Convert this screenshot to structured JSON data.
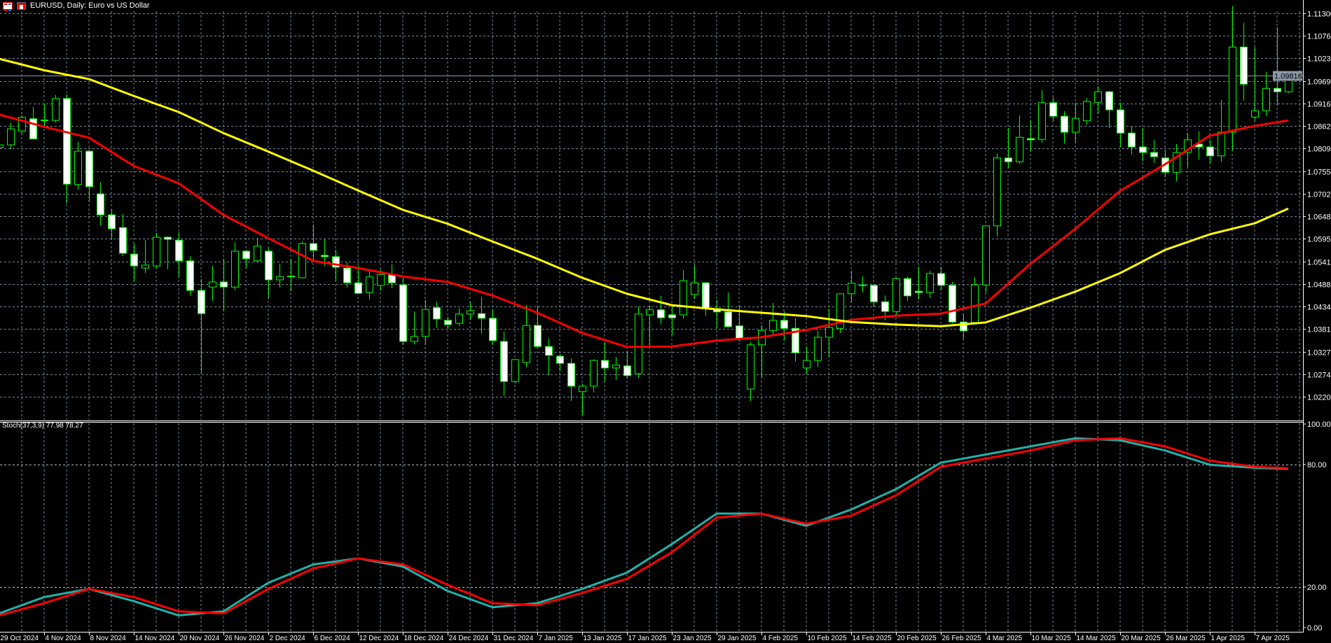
{
  "header": {
    "title": "EURUSD, Daily:  Euro vs US Dollar",
    "icons": [
      "symbol-list-icon",
      "chart-window-icon"
    ]
  },
  "indicator_panel": {
    "label": "Stoch(37,3,9) 77.98 78.27"
  },
  "current_price": "1.09816",
  "colors": {
    "background": "#000000",
    "grid": "#778899",
    "candle_outline": "#00ff00",
    "bear_body": "#ffffff",
    "bull_body": "#000000",
    "ma_fast": "#ff0000",
    "ma_slow": "#ffff00",
    "stoch_main": "#20b2aa",
    "stoch_signal": "#ff0000",
    "axis_text": "#ffffff",
    "price_tag": "#8a99a6"
  },
  "chart_data": [
    {
      "type": "candlestick",
      "symbol": "EURUSD",
      "timeframe": "Daily",
      "x_tick_labels": [
        "29 Oct 2024",
        "4 Nov 2024",
        "8 Nov 2024",
        "14 Nov 2024",
        "20 Nov 2024",
        "26 Nov 2024",
        "2 Dec 2024",
        "6 Dec 2024",
        "12 Dec 2024",
        "18 Dec 2024",
        "24 Dec 2024",
        "31 Dec 2024",
        "7 Jan 2025",
        "13 Jan 2025",
        "17 Jan 2025",
        "23 Jan 2025",
        "29 Jan 2025",
        "4 Feb 2025",
        "10 Feb 2025",
        "14 Feb 2025",
        "20 Feb 2025",
        "26 Feb 2025",
        "4 Mar 2025",
        "10 Mar 2025",
        "14 Mar 2025",
        "20 Mar 2025",
        "26 Mar 2025",
        "1 Apr 2025",
        "7 Apr 2025"
      ],
      "y_tick_labels": [
        "1.11300",
        "1.10765",
        "1.10230",
        "1.09695",
        "1.09160",
        "1.08625",
        "1.08090",
        "1.07555",
        "1.07020",
        "1.06485",
        "1.05950",
        "1.05415",
        "1.04880",
        "1.04345",
        "1.03810",
        "1.03275",
        "1.02740",
        "1.02205"
      ],
      "ylim": [
        1.0185,
        1.116
      ],
      "grid": true,
      "ohlc_fields": [
        "open",
        "high",
        "low",
        "close"
      ],
      "candles": [
        [
          1.0812,
          1.0821,
          1.0808,
          1.0818
        ],
        [
          1.0818,
          1.0871,
          1.0808,
          1.0856
        ],
        [
          1.0851,
          1.0888,
          1.0843,
          1.0883
        ],
        [
          1.088,
          1.0908,
          1.0831,
          1.0832
        ],
        [
          1.0876,
          1.0916,
          1.0863,
          1.0877
        ],
        [
          1.0876,
          1.0936,
          1.0871,
          1.0928
        ],
        [
          1.0928,
          1.0938,
          1.068,
          1.0725
        ],
        [
          1.0724,
          1.0825,
          1.0712,
          1.0803
        ],
        [
          1.0803,
          1.0805,
          1.0684,
          1.0719
        ],
        [
          1.0702,
          1.0729,
          1.0627,
          1.0652
        ],
        [
          1.0652,
          1.0664,
          1.0594,
          1.0619
        ],
        [
          1.0622,
          1.0654,
          1.0554,
          1.0561
        ],
        [
          1.0559,
          1.0583,
          1.0495,
          1.0531
        ],
        [
          1.0526,
          1.0592,
          1.0514,
          1.0533
        ],
        [
          1.0531,
          1.0609,
          1.0526,
          1.0599
        ],
        [
          1.0599,
          1.0601,
          1.0523,
          1.0594
        ],
        [
          1.0592,
          1.0611,
          1.0505,
          1.0543
        ],
        [
          1.0543,
          1.0554,
          1.0461,
          1.0473
        ],
        [
          1.0473,
          1.05,
          1.0277,
          1.0418
        ],
        [
          1.0481,
          1.0531,
          1.0448,
          1.0493
        ],
        [
          1.0493,
          1.0548,
          1.0423,
          1.0481
        ],
        [
          1.0481,
          1.0588,
          1.0473,
          1.0566
        ],
        [
          1.0566,
          1.0569,
          1.0526,
          1.0548
        ],
        [
          1.0543,
          1.0597,
          1.0539,
          1.0578
        ],
        [
          1.0566,
          1.0573,
          1.0455,
          1.0498
        ],
        [
          1.0498,
          1.0536,
          1.048,
          1.0506
        ],
        [
          1.0506,
          1.0548,
          1.0471,
          1.0507
        ],
        [
          1.0503,
          1.0589,
          1.0501,
          1.0584
        ],
        [
          1.0584,
          1.0629,
          1.0543,
          1.0568
        ],
        [
          1.0556,
          1.0594,
          1.0531,
          1.0553
        ],
        [
          1.0553,
          1.0569,
          1.0495,
          1.0528
        ],
        [
          1.0526,
          1.0539,
          1.048,
          1.0491
        ],
        [
          1.0491,
          1.0531,
          1.0465,
          1.0466
        ],
        [
          1.0468,
          1.0523,
          1.0452,
          1.0505
        ],
        [
          1.0485,
          1.0523,
          1.0473,
          1.0511
        ],
        [
          1.0511,
          1.0534,
          1.0478,
          1.0491
        ],
        [
          1.0486,
          1.0503,
          1.0344,
          1.0352
        ],
        [
          1.0352,
          1.0423,
          1.0345,
          1.0364
        ],
        [
          1.0364,
          1.045,
          1.0344,
          1.0428
        ],
        [
          1.0432,
          1.0446,
          1.0385,
          1.0405
        ],
        [
          1.0402,
          1.041,
          1.0382,
          1.0392
        ],
        [
          1.0395,
          1.043,
          1.0388,
          1.0417
        ],
        [
          1.0417,
          1.0445,
          1.0403,
          1.0425
        ],
        [
          1.0418,
          1.0458,
          1.037,
          1.0407
        ],
        [
          1.0407,
          1.0427,
          1.0344,
          1.0354
        ],
        [
          1.0352,
          1.0375,
          1.0223,
          1.0257
        ],
        [
          1.0257,
          1.031,
          1.0252,
          1.0309
        ],
        [
          1.0302,
          1.0437,
          1.0291,
          1.039
        ],
        [
          1.039,
          1.0435,
          1.0337,
          1.034
        ],
        [
          1.034,
          1.0359,
          1.0272,
          1.0319
        ],
        [
          1.0317,
          1.0322,
          1.0282,
          1.03
        ],
        [
          1.03,
          1.0312,
          1.0211,
          1.0246
        ],
        [
          1.0233,
          1.0252,
          1.0178,
          1.0246
        ],
        [
          1.0246,
          1.0309,
          1.0231,
          1.0307
        ],
        [
          1.0307,
          1.035,
          1.0257,
          1.0289
        ],
        [
          1.0289,
          1.0315,
          1.0261,
          1.0296
        ],
        [
          1.0294,
          1.033,
          1.0264,
          1.0271
        ],
        [
          1.0276,
          1.0435,
          1.0266,
          1.0417
        ],
        [
          1.0415,
          1.0437,
          1.0337,
          1.0427
        ],
        [
          1.0427,
          1.046,
          1.0393,
          1.0408
        ],
        [
          1.0415,
          1.0435,
          1.0367,
          1.0408
        ],
        [
          1.0415,
          1.0521,
          1.0406,
          1.0496
        ],
        [
          1.0463,
          1.0533,
          1.0453,
          1.0491
        ],
        [
          1.0491,
          1.0493,
          1.0413,
          1.043
        ],
        [
          1.043,
          1.045,
          1.0382,
          1.0422
        ],
        [
          1.0422,
          1.0468,
          1.0385,
          1.0387
        ],
        [
          1.0389,
          1.0438,
          1.0352,
          1.0359
        ],
        [
          1.0239,
          1.035,
          1.0211,
          1.0344
        ],
        [
          1.0344,
          1.039,
          1.0266,
          1.0378
        ],
        [
          1.0378,
          1.0443,
          1.0368,
          1.0402
        ],
        [
          1.0402,
          1.0423,
          1.0354,
          1.0383
        ],
        [
          1.0383,
          1.0407,
          1.0304,
          1.0325
        ],
        [
          1.0289,
          1.034,
          1.0274,
          1.0307
        ],
        [
          1.0307,
          1.0377,
          1.0292,
          1.0362
        ],
        [
          1.0362,
          1.043,
          1.0315,
          1.0385
        ],
        [
          1.0383,
          1.0466,
          1.0372,
          1.0465
        ],
        [
          1.0465,
          1.0519,
          1.0445,
          1.049
        ],
        [
          1.0485,
          1.0506,
          1.0468,
          1.0486
        ],
        [
          1.0485,
          1.0486,
          1.0435,
          1.0446
        ],
        [
          1.0446,
          1.0461,
          1.0402,
          1.0423
        ],
        [
          1.0423,
          1.0503,
          1.0415,
          1.0501
        ],
        [
          1.0501,
          1.0506,
          1.0448,
          1.046
        ],
        [
          1.0471,
          1.0529,
          1.0453,
          1.0468
        ],
        [
          1.0468,
          1.0519,
          1.0455,
          1.0513
        ],
        [
          1.0513,
          1.0529,
          1.0473,
          1.0485
        ],
        [
          1.0485,
          1.0493,
          1.0395,
          1.0398
        ],
        [
          1.0398,
          1.0418,
          1.0357,
          1.0377
        ],
        [
          1.0397,
          1.0505,
          1.0393,
          1.0486
        ],
        [
          1.0486,
          1.0627,
          1.0468,
          1.0626
        ],
        [
          1.0626,
          1.0797,
          1.0601,
          1.0787
        ],
        [
          1.0787,
          1.0858,
          1.0763,
          1.0778
        ],
        [
          1.0778,
          1.0888,
          1.0773,
          1.0836
        ],
        [
          1.0833,
          1.0876,
          1.0803,
          1.083
        ],
        [
          1.0831,
          1.0948,
          1.0823,
          1.0918
        ],
        [
          1.0918,
          1.0931,
          1.0875,
          1.0886
        ],
        [
          1.0886,
          1.0898,
          1.0821,
          1.0848
        ],
        [
          1.0848,
          1.0918,
          1.0825,
          1.0881
        ],
        [
          1.0875,
          1.0929,
          1.0866,
          1.0921
        ],
        [
          1.0919,
          1.0957,
          1.0891,
          1.0944
        ],
        [
          1.0944,
          1.0946,
          1.0858,
          1.0901
        ],
        [
          1.0901,
          1.0918,
          1.0813,
          1.0846
        ],
        [
          1.0846,
          1.0861,
          1.0795,
          1.0813
        ],
        [
          1.0813,
          1.0858,
          1.078,
          1.08
        ],
        [
          1.08,
          1.083,
          1.0775,
          1.079
        ],
        [
          1.0787,
          1.0805,
          1.0742,
          1.0753
        ],
        [
          1.0753,
          1.082,
          1.0732,
          1.08
        ],
        [
          1.08,
          1.0846,
          1.0765,
          1.083
        ],
        [
          1.082,
          1.085,
          1.0783,
          1.0813
        ],
        [
          1.0813,
          1.083,
          1.0775,
          1.0792
        ],
        [
          1.0792,
          1.0924,
          1.0778,
          1.0848
        ],
        [
          1.0848,
          1.1147,
          1.0805,
          1.105
        ],
        [
          1.105,
          1.1107,
          1.0923,
          1.0962
        ],
        [
          1.0884,
          1.105,
          1.0875,
          1.0899
        ],
        [
          1.0899,
          1.0991,
          1.0886,
          1.0952
        ],
        [
          1.0952,
          1.1097,
          1.0911,
          1.0944
        ],
        [
          1.0944,
          1.0986,
          1.0941,
          1.0982
        ]
      ],
      "overlays": [
        {
          "color": "#ff0000",
          "values_at_x_ticks": [
            1.089,
            1.0861,
            1.0835,
            1.0768,
            1.0727,
            1.0652,
            1.0597,
            1.0543,
            1.0526,
            1.0506,
            1.0493,
            1.0461,
            1.042,
            1.0372,
            1.0339,
            1.034,
            1.0354,
            1.0362,
            1.0379,
            1.0403,
            1.0413,
            1.0418,
            1.0442,
            1.0536,
            1.0619,
            1.0709,
            1.0772,
            1.084,
            1.0863
          ],
          "last": 1.0876
        },
        {
          "color": "#ffff00",
          "values_at_x_ticks": [
            1.1022,
            1.0995,
            1.0974,
            1.0934,
            1.0896,
            1.0846,
            1.0802,
            1.0757,
            1.071,
            1.0664,
            1.0631,
            1.0589,
            1.0548,
            1.0503,
            1.0465,
            1.0438,
            1.0428,
            1.042,
            1.0412,
            1.0398,
            1.0392,
            1.0388,
            1.0397,
            1.0432,
            1.047,
            1.0514,
            1.0569,
            1.0606,
            1.0632
          ],
          "last": 1.0667
        }
      ]
    },
    {
      "type": "line",
      "title": "Stoch(37,3,9) 77.98 78.27",
      "y_tick_labels": [
        "100.00",
        "80.00",
        "20.00",
        "0.00"
      ],
      "ylim": [
        0,
        100
      ],
      "levels": [
        20,
        80
      ],
      "series": [
        {
          "color": "#20b2aa",
          "values_at_x_ticks": [
            7,
            15,
            19,
            13,
            6,
            8,
            22,
            31,
            34,
            30,
            18,
            10,
            12,
            19,
            27,
            41,
            56,
            56,
            50,
            58,
            68,
            81,
            85,
            89,
            93,
            92,
            87,
            80,
            78.5
          ],
          "last": 77.98
        },
        {
          "color": "#ff0000",
          "values_at_x_ticks": [
            6,
            12,
            19,
            15,
            8,
            7,
            19,
            29,
            34,
            31,
            21,
            12,
            11,
            17,
            24,
            37,
            54,
            56,
            51,
            55,
            65,
            79,
            83,
            87,
            92,
            93,
            89,
            82,
            79
          ],
          "last": 78.27
        }
      ]
    }
  ]
}
